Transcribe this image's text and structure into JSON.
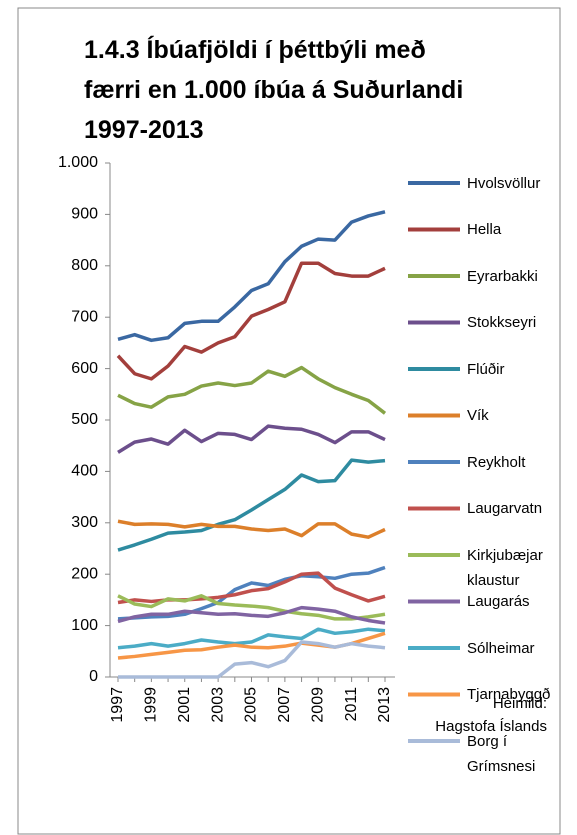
{
  "chart_data": {
    "type": "line",
    "title": [
      "1.4.3 Íbúafjöldi í þéttbýli með",
      "færri en 1.000 íbúa á Suðurlandi",
      "1997-2013"
    ],
    "source": [
      "Heimild:",
      "Hagstofa Íslands"
    ],
    "categories": [
      "1997",
      null,
      "1999",
      null,
      "2001",
      null,
      "2003",
      null,
      "2005",
      null,
      "2007",
      null,
      "2009",
      null,
      "2011",
      null,
      "2013"
    ],
    "ylim": [
      0,
      1000
    ],
    "yticks": [
      0,
      100,
      200,
      300,
      400,
      500,
      600,
      700,
      800,
      900,
      {
        "value": 1000,
        "label": "1.000"
      }
    ],
    "series": [
      {
        "name": "Hvolsvöllur",
        "color": "#3a68a2",
        "values": [
          657,
          666,
          655,
          660,
          688,
          692,
          692,
          720,
          752,
          765,
          808,
          838,
          852,
          850,
          885,
          897,
          905
        ]
      },
      {
        "name": "Hella",
        "color": "#a33f3c",
        "values": [
          625,
          590,
          580,
          605,
          643,
          632,
          650,
          662,
          702,
          715,
          730,
          805,
          805,
          785,
          780,
          780,
          795
        ]
      },
      {
        "name": "Eyrarbakki",
        "color": "#86a346",
        "values": [
          548,
          532,
          525,
          545,
          550,
          566,
          572,
          567,
          572,
          595,
          585,
          602,
          580,
          563,
          550,
          538,
          513
        ]
      },
      {
        "name": "Stokkseyri",
        "color": "#6c4f8c",
        "values": [
          437,
          457,
          463,
          453,
          480,
          458,
          474,
          472,
          462,
          488,
          484,
          482,
          472,
          456,
          477,
          477,
          462
        ]
      },
      {
        "name": "Flúðir",
        "color": "#2e8ba0",
        "values": [
          247,
          257,
          268,
          280,
          282,
          285,
          297,
          306,
          325,
          345,
          365,
          393,
          380,
          382,
          422,
          418,
          421
        ]
      },
      {
        "name": "Vík",
        "color": "#dc7f2a",
        "values": [
          303,
          297,
          298,
          297,
          292,
          297,
          293,
          293,
          288,
          285,
          288,
          275,
          298,
          298,
          278,
          272,
          287
        ]
      },
      {
        "name": "Reykholt",
        "color": "#4f81bd",
        "values": [
          113,
          115,
          117,
          118,
          122,
          133,
          145,
          170,
          183,
          178,
          190,
          197,
          195,
          192,
          200,
          202,
          213
        ]
      },
      {
        "name": "Laugarvatn",
        "color": "#c0504d",
        "values": [
          145,
          150,
          147,
          150,
          150,
          152,
          155,
          160,
          168,
          172,
          185,
          200,
          202,
          173,
          160,
          148,
          157
        ]
      },
      {
        "name": "Kirkjubæjar klaustur",
        "color": "#9bbb59",
        "values": [
          158,
          142,
          137,
          152,
          148,
          158,
          143,
          140,
          138,
          135,
          128,
          123,
          120,
          113,
          113,
          117,
          122
        ]
      },
      {
        "name": "Laugarás",
        "color": "#8064a2",
        "values": [
          108,
          117,
          122,
          122,
          128,
          125,
          122,
          123,
          120,
          118,
          125,
          135,
          132,
          128,
          117,
          110,
          105
        ]
      },
      {
        "name": "Sólheimar",
        "color": "#4bacc6",
        "values": [
          57,
          60,
          65,
          60,
          65,
          72,
          68,
          65,
          68,
          82,
          78,
          75,
          93,
          85,
          88,
          93,
          90
        ]
      },
      {
        "name": "Tjarnabyggð",
        "color": "#f79646",
        "values": [
          37,
          40,
          44,
          48,
          52,
          53,
          58,
          62,
          58,
          57,
          60,
          66,
          62,
          58,
          65,
          75,
          85
        ]
      },
      {
        "name": "Borg í Grímsnesi",
        "color": "#a9bbd9",
        "values": [
          0,
          0,
          0,
          0,
          0,
          0,
          0,
          25,
          28,
          20,
          32,
          68,
          65,
          58,
          65,
          60,
          57
        ]
      }
    ]
  }
}
